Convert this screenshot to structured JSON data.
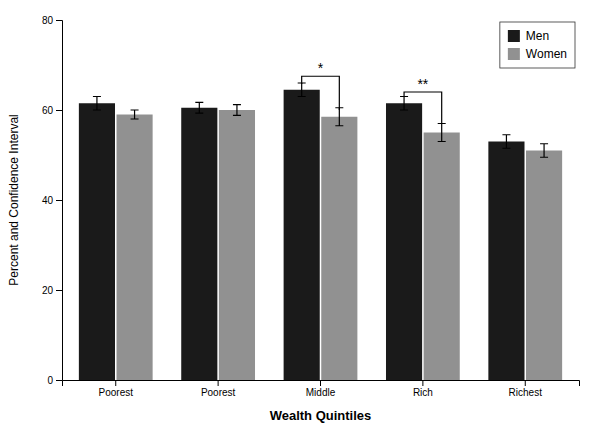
{
  "chart_data": {
    "type": "bar",
    "categories": [
      "Poorest",
      "Poorest",
      "Middle",
      "Rich",
      "Richest"
    ],
    "series": [
      {
        "name": "Men",
        "color": "#1a1a1a",
        "values": [
          61.5,
          60.5,
          64.5,
          61.5,
          53.0
        ],
        "errors": [
          1.5,
          1.2,
          1.5,
          1.5,
          1.5
        ]
      },
      {
        "name": "Women",
        "color": "#919191",
        "values": [
          59.0,
          60.0,
          58.5,
          55.0,
          51.0
        ],
        "errors": [
          1.0,
          1.2,
          2.0,
          2.0,
          1.5
        ]
      }
    ],
    "xlabel": "Wealth Quintiles",
    "ylabel": "Percent and Confidence Interval",
    "ylim": [
      0,
      80
    ],
    "yticks": [
      0,
      20,
      40,
      60,
      80
    ],
    "grid": false,
    "legend": "upper right",
    "annotations": [
      {
        "text": "*",
        "category": 2,
        "y": 67.5,
        "y_left": 65.8,
        "y_right": 60.0
      },
      {
        "text": "**",
        "category": 3,
        "y": 64.0,
        "y_left": 63.0,
        "y_right": 57.0
      }
    ]
  }
}
